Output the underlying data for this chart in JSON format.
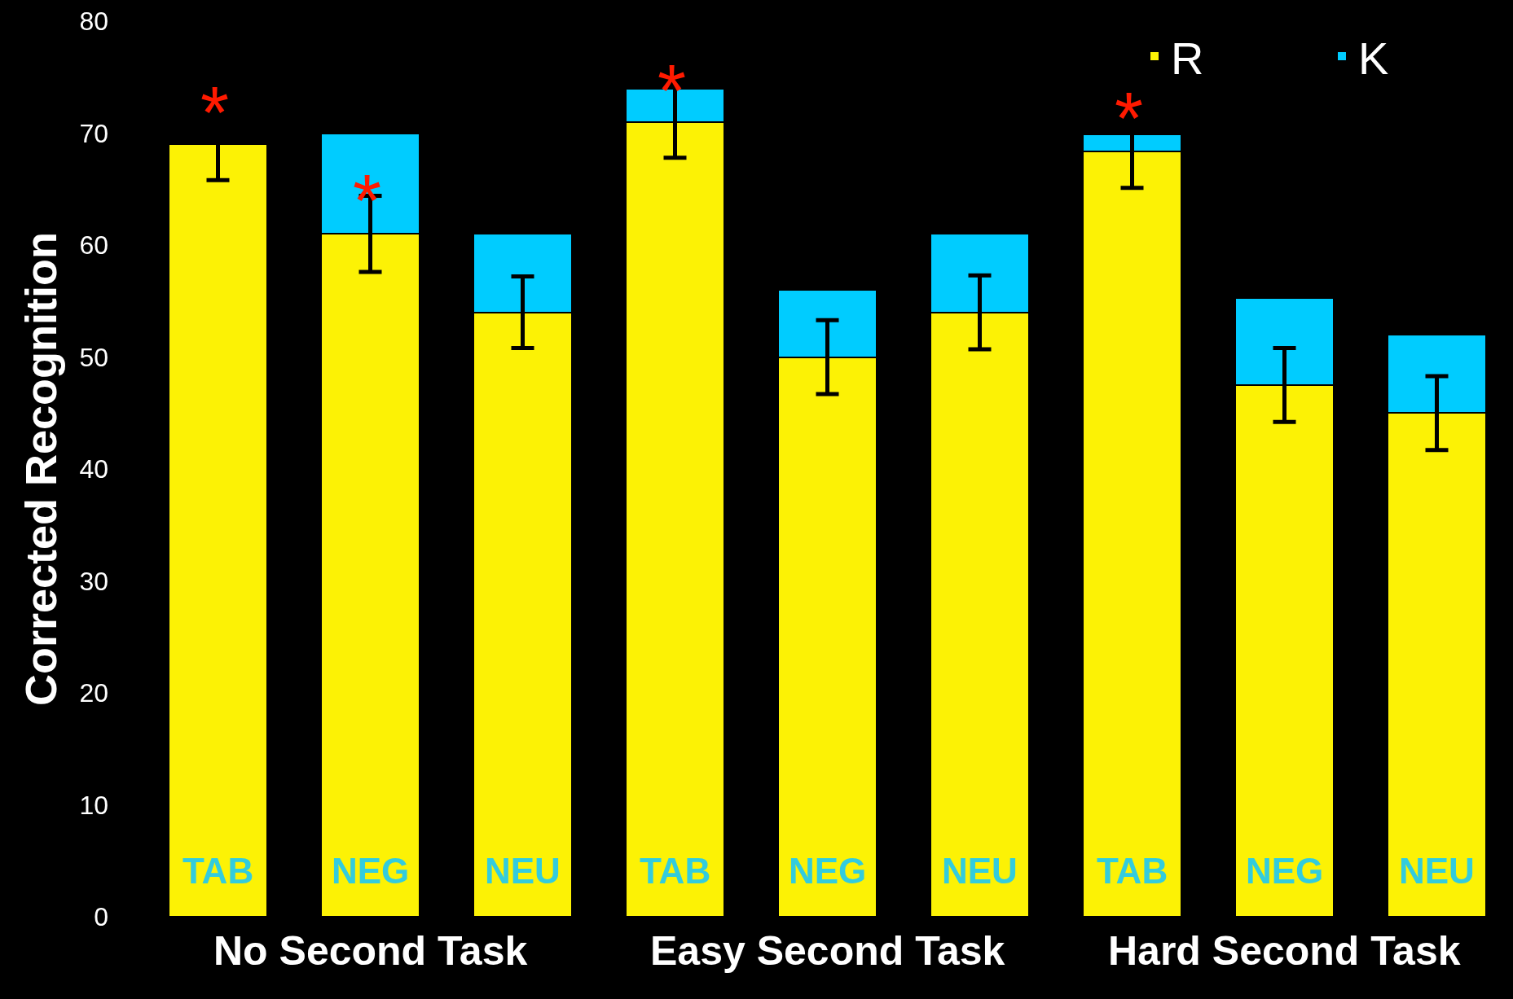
{
  "chart_data": {
    "type": "bar",
    "stacked": true,
    "ylabel": "Corrected Recognition",
    "categories": [
      "TAB",
      "NEG",
      "NEU",
      "TAB",
      "NEG",
      "NEU",
      "TAB",
      "NEG",
      "NEU"
    ],
    "series": [
      {
        "name": "R",
        "color": "#fcf205",
        "values": [
          69,
          61,
          54,
          71,
          50,
          54,
          68.4,
          47.5,
          45
        ],
        "errors": [
          3.2,
          3.4,
          3.2,
          3.2,
          3.3,
          3.3,
          3.3,
          3.3,
          3.3
        ],
        "value_labels": [
          "*",
          "*",
          null,
          "*",
          null,
          null,
          "*",
          null,
          null
        ]
      },
      {
        "name": "K",
        "color": "#00ccff",
        "values": [
          0,
          9,
          7,
          3,
          6,
          7,
          1.5,
          7.8,
          7
        ]
      }
    ],
    "ylim": [
      0,
      80
    ],
    "yticks": [
      0,
      10,
      20,
      30,
      40,
      50,
      60,
      70,
      80
    ],
    "grid": false,
    "legend": "top right",
    "annotations": [
      "No Second Task",
      "Easy Second Task",
      "Hard Second Task"
    ]
  }
}
